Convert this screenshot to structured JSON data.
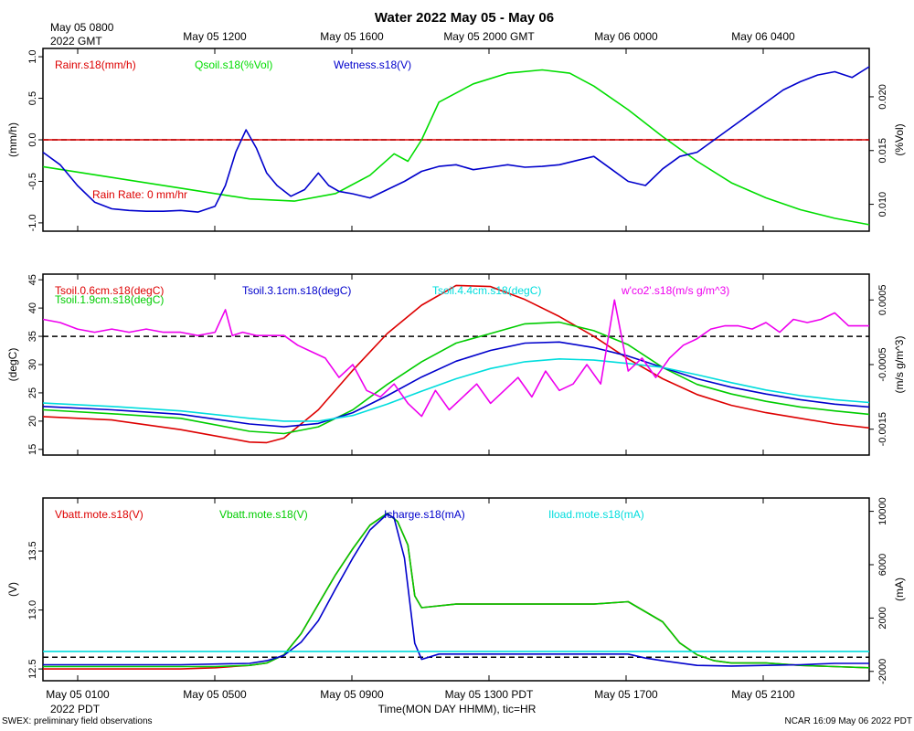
{
  "title": "Water 2022 May 05 - May 06",
  "top_left_label": [
    "May 05 0800",
    "2022 GMT"
  ],
  "top_ticks": [
    "May 05 1200",
    "May 05 1600",
    "May 05 2000 GMT",
    "May 06 0000",
    "May 06 0400"
  ],
  "bottom_ticks": [
    "May 05 0100",
    "May 05 0500",
    "May 05 0900",
    "May 05 1300 PDT",
    "May 05 1700",
    "May 05 2100"
  ],
  "bottom_left_label": "2022 PDT",
  "xaxis_label": "Time(MON DAY HHMM), tic=HR",
  "footer_left": "SWEX: preliminary field observations",
  "footer_right": "NCAR 16:09 May 06 2022 PDT",
  "chart_data": [
    {
      "type": "line",
      "panel": "top",
      "ylabel": "(mm/h)",
      "ylabel_right": "(%Vol)",
      "ylim": [
        -1.1,
        1.1
      ],
      "ylim_right": [
        0.0075,
        0.0245
      ],
      "yticks": [
        -1.0,
        -0.5,
        0.0,
        0.5,
        1.0
      ],
      "yticks_right": [
        0.01,
        0.015,
        0.02
      ],
      "ytick_labels": [
        "-1.0",
        "-0.5",
        "0.0",
        "0.5",
        "1.0"
      ],
      "ytick_labels_right": [
        "0.010",
        "0.015",
        "0.020"
      ],
      "xlim": [
        0,
        24
      ],
      "reference_line": 0.0,
      "annotation": "Rain Rate: 0 mm/hr",
      "series": [
        {
          "name": "Rainr.s18(mm/h)",
          "color": "#dd0000",
          "axis": "left",
          "x": [
            0,
            24
          ],
          "y": [
            0,
            0
          ]
        },
        {
          "name": "Qsoil.s18(%Vol)",
          "color": "#00dd00",
          "axis": "right",
          "x": [
            0,
            2,
            4,
            6,
            7.3,
            8.5,
            9.5,
            10.2,
            10.6,
            11.0,
            11.5,
            12.5,
            13.5,
            14.5,
            15.3,
            16,
            17,
            18,
            19,
            20,
            21,
            22,
            23,
            24
          ],
          "y": [
            0.0135,
            0.0125,
            0.0115,
            0.0105,
            0.0103,
            0.011,
            0.0127,
            0.0147,
            0.014,
            0.016,
            0.0195,
            0.0212,
            0.0222,
            0.0225,
            0.0222,
            0.021,
            0.0188,
            0.0163,
            0.014,
            0.012,
            0.0106,
            0.0095,
            0.0087,
            0.0081
          ]
        },
        {
          "name": "Wetness.s18(V)",
          "color": "#0000cc",
          "axis": "left",
          "x": [
            0,
            0.5,
            1,
            1.5,
            2,
            2.5,
            3,
            3.5,
            4,
            4.5,
            5,
            5.3,
            5.6,
            5.9,
            6.2,
            6.5,
            6.8,
            7.2,
            7.6,
            8,
            8.3,
            8.6,
            9,
            9.5,
            10,
            10.5,
            11,
            11.5,
            12,
            12.5,
            13,
            13.5,
            14,
            14.5,
            15,
            15.5,
            16,
            16.5,
            17,
            17.5,
            18,
            18.5,
            19,
            19.5,
            20,
            20.5,
            21,
            21.5,
            22,
            22.5,
            23,
            23.5,
            24
          ],
          "y": [
            -0.15,
            -0.3,
            -0.55,
            -0.75,
            -0.83,
            -0.85,
            -0.86,
            -0.86,
            -0.85,
            -0.87,
            -0.8,
            -0.55,
            -0.15,
            0.12,
            -0.1,
            -0.4,
            -0.55,
            -0.68,
            -0.6,
            -0.4,
            -0.55,
            -0.62,
            -0.65,
            -0.7,
            -0.6,
            -0.5,
            -0.38,
            -0.32,
            -0.3,
            -0.36,
            -0.33,
            -0.3,
            -0.33,
            -0.32,
            -0.3,
            -0.25,
            -0.2,
            -0.35,
            -0.5,
            -0.55,
            -0.35,
            -0.2,
            -0.15,
            0.0,
            0.15,
            0.3,
            0.45,
            0.6,
            0.7,
            0.78,
            0.82,
            0.75,
            0.88
          ]
        }
      ]
    },
    {
      "type": "line",
      "panel": "middle",
      "ylabel": "(degC)",
      "ylabel_right": "(m/s g/m^3)",
      "ylim": [
        14,
        46
      ],
      "ylim_right": [
        -0.0019,
        0.0009
      ],
      "yticks": [
        15,
        20,
        25,
        30,
        35,
        40,
        45
      ],
      "yticks_right": [
        -0.0015,
        -0.0005,
        0.0005
      ],
      "ytick_labels": [
        "15",
        "20",
        "25",
        "30",
        "35",
        "40",
        "45"
      ],
      "ytick_labels_right": [
        "-0.0015",
        "-0.0005",
        "0.0005"
      ],
      "xlim": [
        0,
        24
      ],
      "reference_line": 35,
      "series": [
        {
          "name": "Tsoil.0.6cm.s18(degC)",
          "color": "#dd0000",
          "axis": "left",
          "x": [
            0,
            2,
            4,
            6,
            6.5,
            7,
            8,
            9,
            10,
            11,
            12,
            13,
            14,
            15,
            16,
            17,
            18,
            19,
            20,
            21,
            22,
            23,
            24
          ],
          "y": [
            20.8,
            20.2,
            18.5,
            16.3,
            16.2,
            17,
            22,
            29,
            35.5,
            40.5,
            44,
            43.8,
            41.5,
            38.5,
            35,
            31,
            27.5,
            24.7,
            22.8,
            21.5,
            20.5,
            19.5,
            18.8
          ]
        },
        {
          "name": "Tsoil.1.9cm.s18(degC)",
          "color": "#00cc00",
          "axis": "left",
          "x": [
            0,
            2,
            4,
            6,
            7,
            8,
            9,
            10,
            11,
            12,
            13,
            14,
            15,
            16,
            17,
            18,
            19,
            20,
            21,
            22,
            23,
            24
          ],
          "y": [
            22,
            21.3,
            20.5,
            18.2,
            17.8,
            19,
            22,
            26.5,
            30.5,
            33.8,
            35.5,
            37.2,
            37.5,
            36,
            33.5,
            29.5,
            26.5,
            24.8,
            23.5,
            22.5,
            21.8,
            21.2
          ]
        },
        {
          "name": "Tsoil.3.1cm.s18(degC)",
          "color": "#0000cc",
          "axis": "left",
          "x": [
            0,
            2,
            4,
            6,
            7,
            8,
            9,
            10,
            11,
            12,
            13,
            14,
            15,
            16,
            17,
            18,
            19,
            20,
            21,
            22,
            23,
            24
          ],
          "y": [
            22.6,
            22,
            21.2,
            19.5,
            19,
            19.6,
            21.5,
            24.5,
            27.8,
            30.6,
            32.5,
            33.8,
            34,
            33,
            31.5,
            29.5,
            27.5,
            26,
            24.8,
            23.8,
            23,
            22.5
          ]
        },
        {
          "name": "Tsoil.4.4cm.s18(degC)",
          "color": "#00dddd",
          "axis": "left",
          "x": [
            0,
            2,
            4,
            6,
            7,
            8,
            9,
            10,
            11,
            12,
            13,
            14,
            15,
            16,
            17,
            18,
            19,
            20,
            21,
            22,
            23,
            24
          ],
          "y": [
            23.2,
            22.6,
            21.8,
            20.5,
            20,
            20,
            21,
            23,
            25.3,
            27.5,
            29.3,
            30.5,
            31,
            30.8,
            30.2,
            29.5,
            28.2,
            26.8,
            25.5,
            24.5,
            23.8,
            23.3
          ]
        },
        {
          "name": "w'co2'.s18(m/s g/m^3)",
          "color": "#ee00ee",
          "axis": "right",
          "x": [
            0,
            0.5,
            1,
            1.5,
            2,
            2.5,
            3,
            3.5,
            4,
            4.5,
            5,
            5.3,
            5.5,
            5.8,
            6.2,
            6.6,
            7,
            7.4,
            7.8,
            8.2,
            8.6,
            9,
            9.4,
            9.8,
            10.2,
            10.6,
            11,
            11.4,
            11.8,
            12.2,
            12.6,
            13,
            13.4,
            13.8,
            14.2,
            14.6,
            15,
            15.4,
            15.8,
            16.2,
            16.6,
            17,
            17.4,
            17.8,
            18.2,
            18.6,
            19,
            19.4,
            19.8,
            20.2,
            20.6,
            21,
            21.4,
            21.8,
            22.2,
            22.6,
            23,
            23.4,
            24
          ],
          "y": [
            0.0002,
            0.00015,
            5e-05,
            0.0,
            5e-05,
            0.0,
            5e-05,
            0.0,
            0.0,
            -5e-05,
            0.0,
            0.00035,
            -5e-05,
            0.0,
            -5e-05,
            -5e-05,
            -5e-05,
            -0.0002,
            -0.0003,
            -0.0004,
            -0.0007,
            -0.0005,
            -0.0009,
            -0.001,
            -0.0008,
            -0.0011,
            -0.0013,
            -0.0009,
            -0.0012,
            -0.001,
            -0.0008,
            -0.0011,
            -0.0009,
            -0.0007,
            -0.001,
            -0.0006,
            -0.0009,
            -0.0008,
            -0.0005,
            -0.0008,
            0.0005,
            -0.0006,
            -0.0004,
            -0.0007,
            -0.0004,
            -0.0002,
            -0.0001,
            5e-05,
            0.0001,
            0.0001,
            5e-05,
            0.00015,
            0.0,
            0.0002,
            0.00015,
            0.0002,
            0.0003,
            0.0001,
            0.0001
          ]
        }
      ]
    },
    {
      "type": "line",
      "panel": "bottom",
      "ylabel": "(V)",
      "ylabel_right": "(mA)",
      "ylim": [
        12.4,
        13.95
      ],
      "ylim_right": [
        -2700,
        11000
      ],
      "yticks": [
        12.5,
        13.0,
        13.5
      ],
      "yticks_right": [
        -2000,
        2000,
        6000,
        10000
      ],
      "ytick_labels": [
        "12.5",
        "13.0",
        "13.5"
      ],
      "ytick_labels_right": [
        "-2000",
        "2000",
        "6000",
        "10000"
      ],
      "xlim": [
        0,
        24
      ],
      "reference_line": 12.6,
      "series": [
        {
          "name": "Vbatt.mote.s18(V)",
          "color": "#dd0000",
          "axis": "left",
          "x": [
            0,
            1,
            2,
            3,
            4,
            5,
            6,
            6.5,
            7,
            7.5,
            8,
            8.5,
            9,
            9.5,
            10,
            10.3,
            10.6,
            10.8,
            11,
            12,
            13,
            14,
            15,
            16,
            17,
            18,
            18.5,
            19,
            19.5,
            20,
            21,
            22,
            23,
            24
          ],
          "y": [
            12.5,
            12.5,
            12.5,
            12.5,
            12.5,
            12.51,
            12.53,
            12.55,
            12.62,
            12.8,
            13.05,
            13.3,
            13.52,
            13.72,
            13.82,
            13.75,
            13.55,
            13.12,
            13.02,
            13.05,
            13.05,
            13.05,
            13.05,
            13.05,
            13.07,
            12.9,
            12.72,
            12.62,
            12.57,
            12.55,
            12.55,
            12.53,
            12.52,
            12.51
          ]
        },
        {
          "name": "Vbatt.mote.s18(V)",
          "color": "#00cc00",
          "axis": "left",
          "x": [
            0,
            1,
            2,
            3,
            4,
            5,
            6,
            6.5,
            7,
            7.5,
            8,
            8.5,
            9,
            9.5,
            10,
            10.3,
            10.6,
            10.8,
            11,
            12,
            13,
            14,
            15,
            16,
            17,
            18,
            18.5,
            19,
            19.5,
            20,
            21,
            22,
            23,
            24
          ],
          "y": [
            12.52,
            12.52,
            12.52,
            12.52,
            12.52,
            12.52,
            12.53,
            12.55,
            12.62,
            12.8,
            13.05,
            13.3,
            13.52,
            13.72,
            13.82,
            13.75,
            13.55,
            13.12,
            13.02,
            13.05,
            13.05,
            13.05,
            13.05,
            13.05,
            13.07,
            12.9,
            12.72,
            12.62,
            12.57,
            12.55,
            12.55,
            12.53,
            12.52,
            12.51
          ]
        },
        {
          "name": "Icharge.s18(mA)",
          "color": "#0000cc",
          "axis": "right",
          "x": [
            0,
            2,
            4,
            6,
            6.5,
            7,
            7.5,
            8,
            8.5,
            9,
            9.5,
            10,
            10.2,
            10.5,
            10.8,
            11,
            11.5,
            12,
            13,
            14,
            15,
            16,
            17,
            17.5,
            18,
            19,
            20,
            21,
            22,
            23,
            24
          ],
          "y": [
            -1500,
            -1500,
            -1500,
            -1400,
            -1200,
            -800,
            200,
            1800,
            4200,
            6500,
            8600,
            9800,
            9500,
            6500,
            100,
            -1100,
            -700,
            -700,
            -700,
            -700,
            -700,
            -700,
            -700,
            -1000,
            -1200,
            -1550,
            -1600,
            -1550,
            -1500,
            -1400,
            -1400
          ]
        },
        {
          "name": "Iload.mote.s18(mA)",
          "color": "#00dddd",
          "axis": "right",
          "x": [
            0,
            24
          ],
          "y": [
            -500,
            -500
          ]
        }
      ]
    }
  ]
}
